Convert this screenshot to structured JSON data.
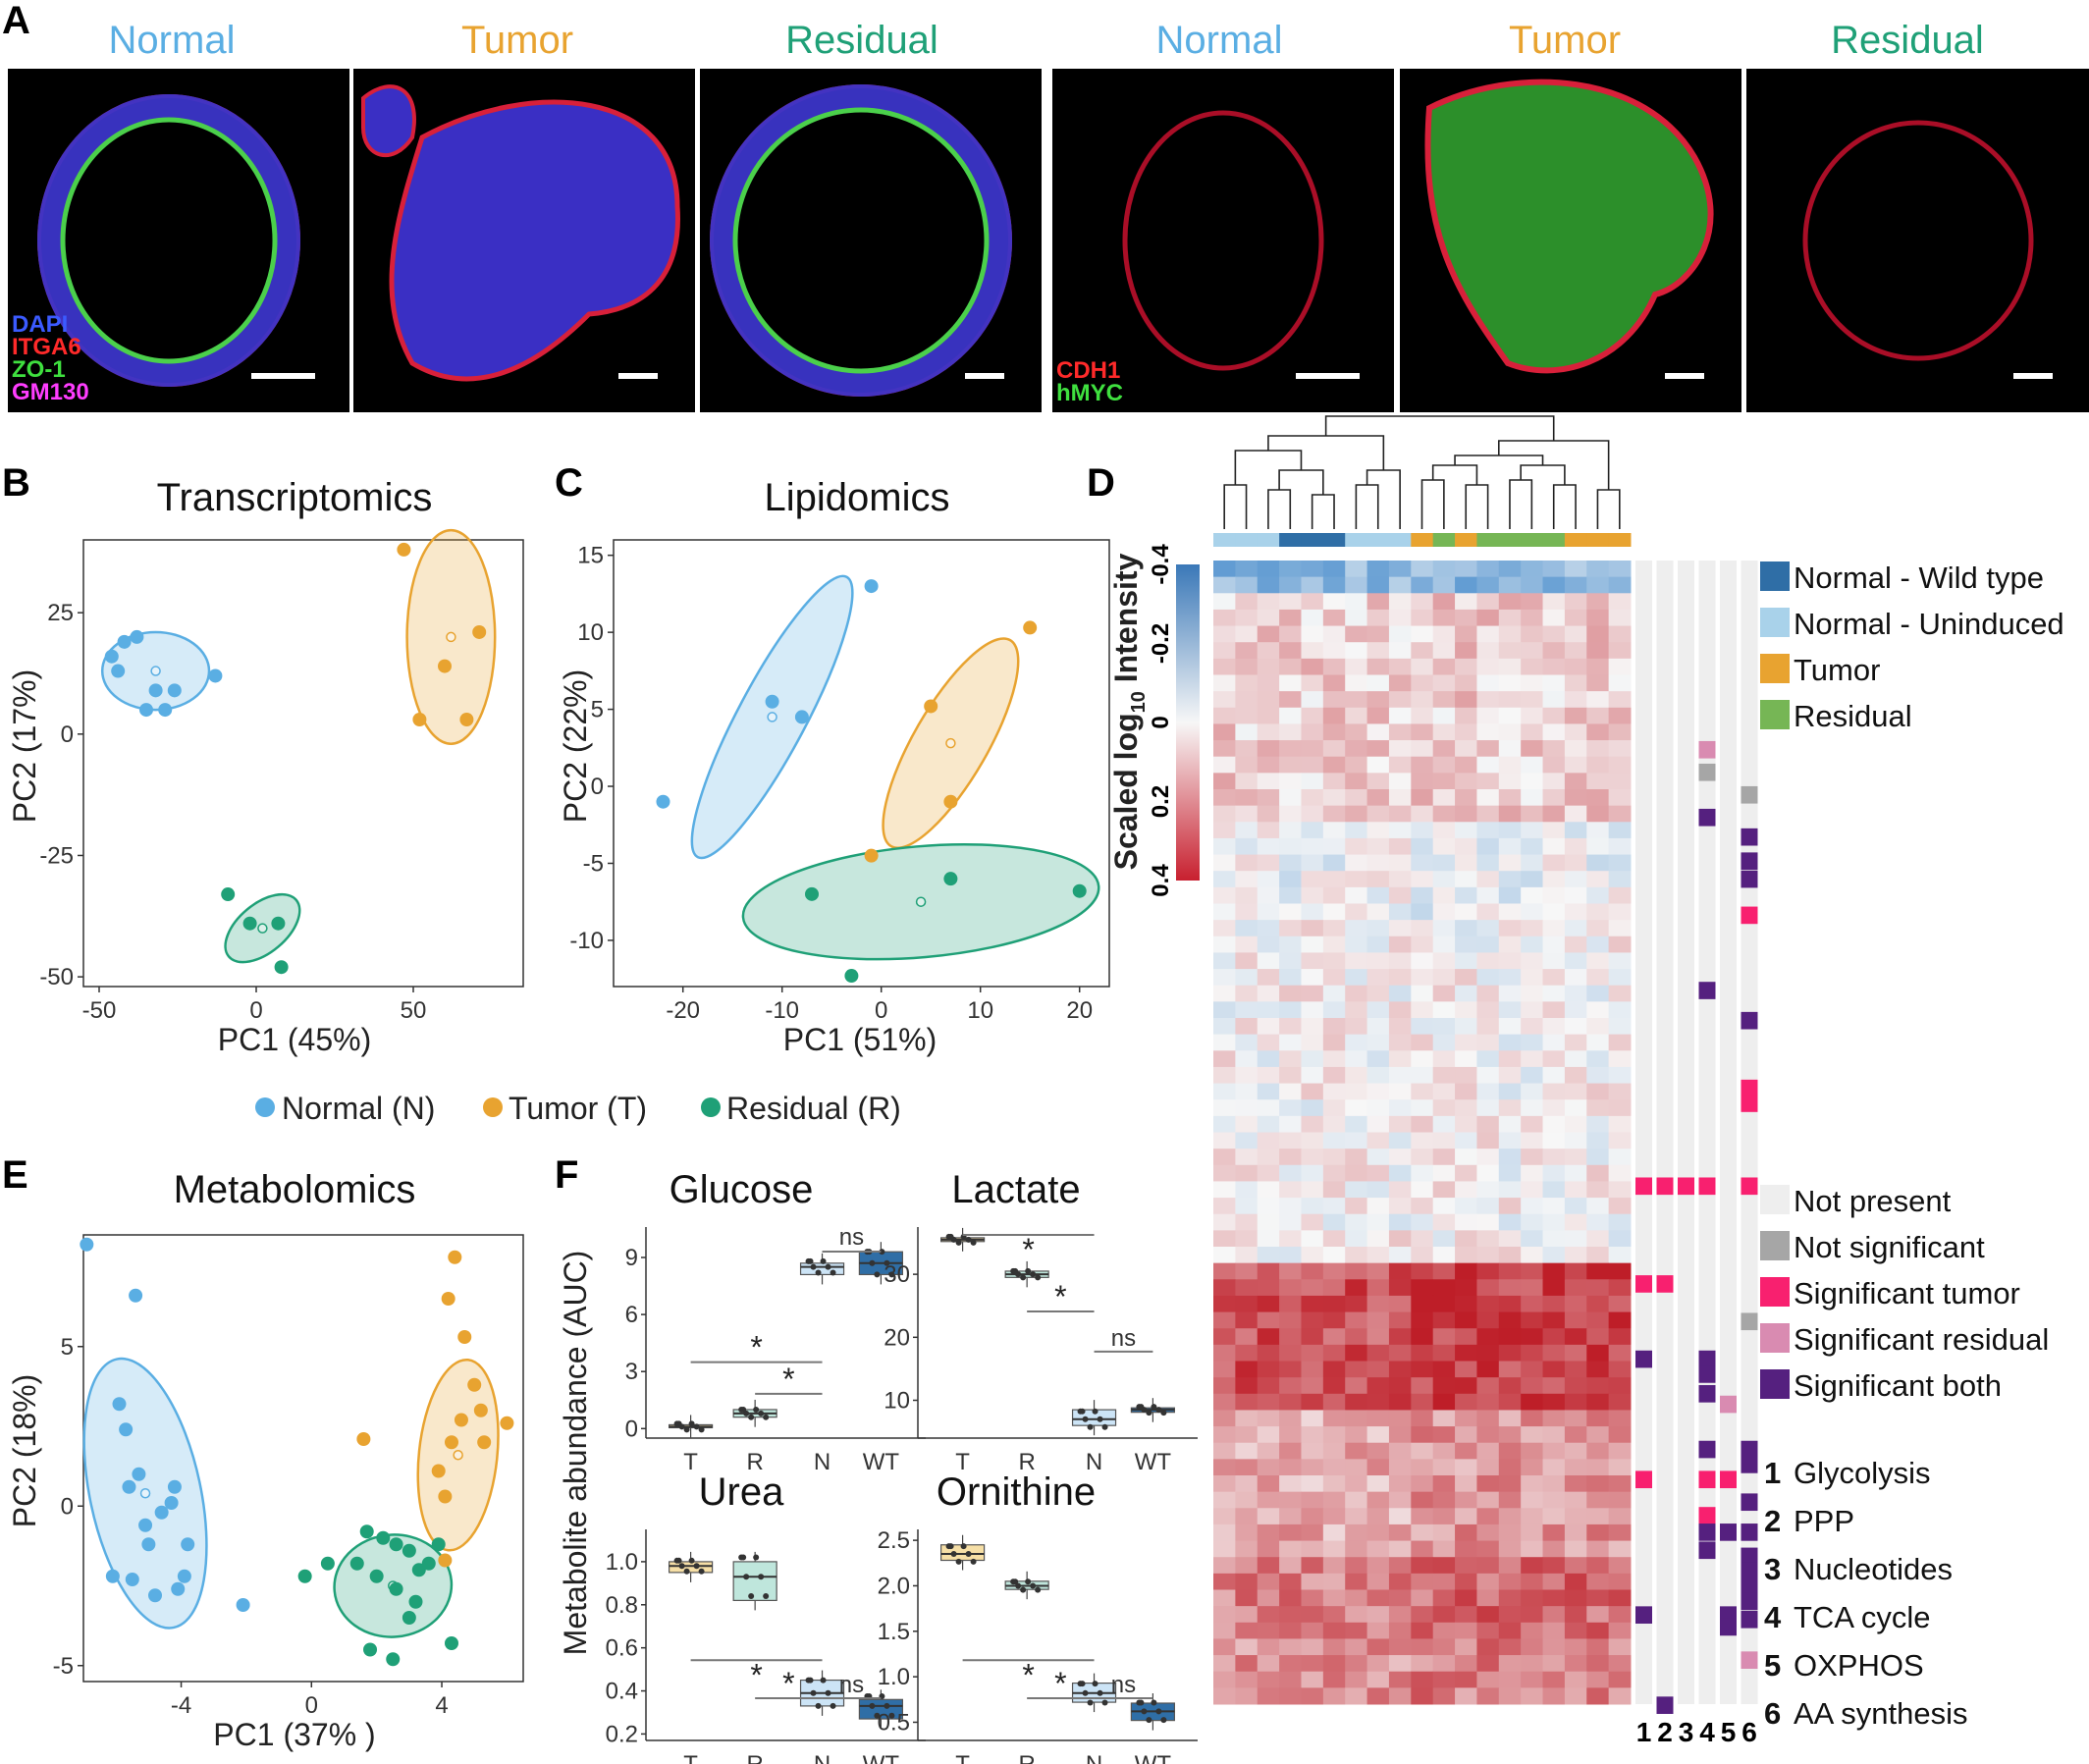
{
  "panels": {
    "a": {
      "letter": "A",
      "left_conditions": [
        "Normal",
        "Tumor",
        "Residual"
      ],
      "right_conditions": [
        "Normal",
        "Tumor",
        "Residual"
      ],
      "stains_left": [
        "DAPI",
        "ITGA6",
        "ZO-1",
        "GM130"
      ],
      "stains_right": [
        "CDH1",
        "hMYC"
      ]
    },
    "b": {
      "letter": "B",
      "title": "Transcriptomics",
      "xlabel": "PC1 (45%)",
      "ylabel": "PC2 (17%)",
      "xticks": [
        "-50",
        "0",
        "50"
      ],
      "yticks": [
        "25",
        "0",
        "-25",
        "-50"
      ]
    },
    "c": {
      "letter": "C",
      "title": "Lipidomics",
      "xlabel": "PC1 (51%)",
      "ylabel": "PC2 (22%)",
      "xticks": [
        "-20",
        "-10",
        "0",
        "10",
        "20"
      ],
      "yticks": [
        "15",
        "10",
        "5",
        "0",
        "-5",
        "-10"
      ]
    },
    "d": {
      "letter": "D",
      "colorbar_title": "Scaled log10 Intensity",
      "colorbar_ticks": [
        "-0.4",
        "-0.2",
        "0",
        "0.2",
        "0.4"
      ],
      "group_legend": [
        "Normal - Wild type",
        "Normal - Uninduced",
        "Tumor",
        "Residual"
      ],
      "sig_legend": [
        "Not present",
        "Not significant",
        "Significant tumor",
        "Significant residual",
        "Significant both"
      ],
      "pathways": [
        {
          "num": "1",
          "name": "Glycolysis"
        },
        {
          "num": "2",
          "name": "PPP"
        },
        {
          "num": "3",
          "name": "Nucleotides"
        },
        {
          "num": "4",
          "name": "TCA cycle"
        },
        {
          "num": "5",
          "name": "OXPHOS"
        },
        {
          "num": "6",
          "name": "AA synthesis"
        }
      ],
      "column_numbers": [
        "1",
        "2",
        "3",
        "4",
        "5",
        "6"
      ]
    },
    "e": {
      "letter": "E",
      "title": "Metabolomics",
      "xlabel": "PC1 (37% )",
      "ylabel": "PC2 (18%)",
      "xticks": [
        "-4",
        "0",
        "4"
      ],
      "yticks": [
        "5",
        "0",
        "-5"
      ]
    },
    "f": {
      "letter": "F",
      "ylabel": "Metabolite abundance (AUC)",
      "star": "*",
      "ns": "ns",
      "titles": [
        "Glucose",
        "Lactate",
        "Urea",
        "Ornithine"
      ],
      "groups": [
        "T",
        "R",
        "N",
        "WT"
      ],
      "glucose_yticks": [
        "9",
        "6",
        "3",
        "0"
      ],
      "lactate_yticks": [
        "30",
        "20",
        "10"
      ],
      "urea_yticks": [
        "1.0",
        "0.8",
        "0.6",
        "0.4",
        "0.2"
      ],
      "ornithine_yticks": [
        "2.5",
        "2.0",
        "1.5",
        "1.0",
        "0.5"
      ]
    }
  },
  "legend_bc": [
    "Normal (N)",
    "Tumor (T)",
    "Residual (R)"
  ],
  "colors": {
    "normal": "#5aaee3",
    "tumor": "#e8a330",
    "residual": "#1fa077",
    "wildtype": "#2f6ea6",
    "uninduced": "#a9d2ea",
    "residual_green": "#76b655",
    "not_present": "#eeeeee",
    "not_significant": "#a6a6a6",
    "sig_tumor": "#f8206f",
    "sig_residual": "#d98bb1",
    "sig_both": "#55207f"
  },
  "chart_data": [
    {
      "type": "scatter",
      "title": "Transcriptomics",
      "xlabel": "PC1 (45%)",
      "ylabel": "PC2 (17%)",
      "xlim": [
        -55,
        85
      ],
      "ylim": [
        -52,
        40
      ],
      "series": [
        {
          "name": "Normal (N)",
          "x": [
            -42,
            -38,
            -46,
            -44,
            -35,
            -32,
            -26,
            -29,
            -13
          ],
          "y": [
            19,
            20,
            16,
            13,
            5,
            9,
            9,
            5,
            12
          ]
        },
        {
          "name": "Tumor (T)",
          "x": [
            47,
            71,
            60,
            52,
            67
          ],
          "y": [
            38,
            21,
            14,
            3,
            3
          ]
        },
        {
          "name": "Residual (R)",
          "x": [
            -9,
            -2,
            7,
            8
          ],
          "y": [
            -33,
            -39,
            -39,
            -48
          ]
        }
      ]
    },
    {
      "type": "scatter",
      "title": "Lipidomics",
      "xlabel": "PC1 (51%)",
      "ylabel": "PC2 (22%)",
      "xlim": [
        -27,
        23
      ],
      "ylim": [
        -13,
        16
      ],
      "series": [
        {
          "name": "Normal (N)",
          "x": [
            -22,
            -11,
            -8,
            -1
          ],
          "y": [
            -1,
            5.5,
            4.5,
            13
          ]
        },
        {
          "name": "Tumor (T)",
          "x": [
            -1,
            5,
            7,
            15
          ],
          "y": [
            -4.5,
            5.2,
            -1,
            10.3
          ]
        },
        {
          "name": "Residual (R)",
          "x": [
            -7,
            -3,
            7,
            20
          ],
          "y": [
            -7,
            -12.3,
            -6,
            -6.8
          ]
        }
      ]
    },
    {
      "type": "scatter",
      "title": "Metabolomics",
      "xlabel": "PC1 (37% )",
      "ylabel": "PC2 (18%)",
      "xlim": [
        -7,
        6.5
      ],
      "ylim": [
        -5.5,
        8.5
      ],
      "series": [
        {
          "name": "Normal (N)",
          "x": [
            -6.9,
            -5.4,
            -5.9,
            -5.7,
            -5.3,
            -5.6,
            -5.1,
            -4.6,
            -4.3,
            -4.2,
            -5.0,
            -5.5,
            -4.8,
            -3.8,
            -3.9,
            -4.1,
            -6.1,
            -2.1
          ],
          "y": [
            8.2,
            6.6,
            3.2,
            2.4,
            1.0,
            0.6,
            -0.6,
            -0.2,
            0.1,
            0.6,
            -1.2,
            -2.3,
            -2.8,
            -1.2,
            -2.2,
            -2.6,
            -2.2,
            -3.1
          ]
        },
        {
          "name": "Tumor (T)",
          "x": [
            4.4,
            4.2,
            4.7,
            5.0,
            5.2,
            4.6,
            4.3,
            3.9,
            4.1,
            5.3,
            6.0,
            1.6,
            4.1
          ],
          "y": [
            7.8,
            6.5,
            5.3,
            3.8,
            3.0,
            2.7,
            2.0,
            1.1,
            0.3,
            2.0,
            2.6,
            2.1,
            -1.7
          ]
        },
        {
          "name": "Residual (R)",
          "x": [
            1.7,
            2.2,
            2.6,
            3.0,
            3.3,
            3.6,
            3.9,
            3.2,
            2.6,
            2.0,
            1.4,
            0.5,
            -0.2,
            1.8,
            2.5,
            4.3,
            3.0
          ],
          "y": [
            -0.8,
            -1.0,
            -1.2,
            -1.4,
            -2.0,
            -1.8,
            -1.2,
            -3.0,
            -2.6,
            -2.2,
            -1.8,
            -1.8,
            -2.2,
            -4.5,
            -4.8,
            -4.3,
            -3.5
          ]
        }
      ]
    },
    {
      "type": "box",
      "title": "Glucose",
      "categories": [
        "T",
        "R",
        "N",
        "WT"
      ],
      "ylim": [
        -0.5,
        10.6
      ],
      "median": [
        0.1,
        0.8,
        8.5,
        8.7
      ],
      "q1": [
        0.05,
        0.6,
        8.1,
        8.1
      ],
      "q3": [
        0.2,
        1.0,
        8.7,
        9.3
      ]
    },
    {
      "type": "box",
      "title": "Lactate",
      "categories": [
        "T",
        "R",
        "N",
        "WT"
      ],
      "ylim": [
        4,
        37.5
      ],
      "median": [
        35.5,
        30.0,
        7.0,
        8.5
      ],
      "q1": [
        35.2,
        29.5,
        6.0,
        8.1
      ],
      "q3": [
        35.8,
        30.5,
        8.5,
        8.8
      ]
    },
    {
      "type": "box",
      "title": "Urea",
      "categories": [
        "T",
        "R",
        "N",
        "WT"
      ],
      "ylim": [
        0.17,
        1.15
      ],
      "median": [
        0.98,
        0.93,
        0.39,
        0.33
      ],
      "q1": [
        0.95,
        0.82,
        0.33,
        0.27
      ],
      "q3": [
        1.0,
        1.0,
        0.45,
        0.36
      ]
    },
    {
      "type": "box",
      "title": "Ornithine",
      "categories": [
        "T",
        "R",
        "N",
        "WT"
      ],
      "ylim": [
        0.3,
        2.62
      ],
      "median": [
        2.35,
        2.0,
        0.82,
        0.62
      ],
      "q1": [
        2.28,
        1.96,
        0.72,
        0.52
      ],
      "q3": [
        2.45,
        2.05,
        0.93,
        0.71
      ]
    }
  ]
}
